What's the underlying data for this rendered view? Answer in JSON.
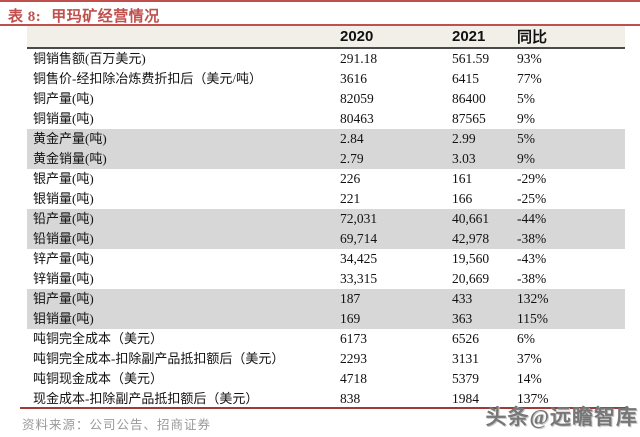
{
  "title": {
    "label": "表 8:",
    "text": "甲玛矿经营情况"
  },
  "table": {
    "header": {
      "year_2020": "2020",
      "year_2021": "2021",
      "yoy": "同比"
    },
    "rows": [
      {
        "label": "铜销售额(百万美元)",
        "v2020": "291.18",
        "v2021": "561.59",
        "yoy": "93%",
        "shaded": false
      },
      {
        "label": "铜售价-经扣除冶炼费折扣后（美元/吨）",
        "v2020": "3616",
        "v2021": "6415",
        "yoy": "77%",
        "shaded": false
      },
      {
        "label": "铜产量(吨)",
        "v2020": "82059",
        "v2021": "86400",
        "yoy": "5%",
        "shaded": false
      },
      {
        "label": "铜销量(吨)",
        "v2020": "80463",
        "v2021": "87565",
        "yoy": "9%",
        "shaded": false
      },
      {
        "label": "黄金产量(吨)",
        "v2020": "2.84",
        "v2021": "2.99",
        "yoy": "5%",
        "shaded": true
      },
      {
        "label": "黄金销量(吨)",
        "v2020": "2.79",
        "v2021": "3.03",
        "yoy": "9%",
        "shaded": true
      },
      {
        "label": "银产量(吨)",
        "v2020": "226",
        "v2021": "161",
        "yoy": "-29%",
        "shaded": false
      },
      {
        "label": "银销量(吨)",
        "v2020": "221",
        "v2021": "166",
        "yoy": "-25%",
        "shaded": false
      },
      {
        "label": "铅产量(吨)",
        "v2020": "72,031",
        "v2021": "40,661",
        "yoy": "-44%",
        "shaded": true
      },
      {
        "label": "铅销量(吨)",
        "v2020": "69,714",
        "v2021": "42,978",
        "yoy": "-38%",
        "shaded": true
      },
      {
        "label": "锌产量(吨)",
        "v2020": "34,425",
        "v2021": "19,560",
        "yoy": "-43%",
        "shaded": false
      },
      {
        "label": "锌销量(吨)",
        "v2020": "33,315",
        "v2021": "20,669",
        "yoy": "-38%",
        "shaded": false
      },
      {
        "label": "钼产量(吨)",
        "v2020": "187",
        "v2021": "433",
        "yoy": "132%",
        "shaded": true
      },
      {
        "label": "钼销量(吨)",
        "v2020": "169",
        "v2021": "363",
        "yoy": "115%",
        "shaded": true
      },
      {
        "label": "吨铜完全成本（美元）",
        "v2020": "6173",
        "v2021": "6526",
        "yoy": "6%",
        "shaded": false
      },
      {
        "label": "吨铜完全成本-扣除副产品抵扣额后（美元）",
        "v2020": "2293",
        "v2021": "3131",
        "yoy": "37%",
        "shaded": false
      },
      {
        "label": "吨铜现金成本（美元）",
        "v2020": "4718",
        "v2021": "5379",
        "yoy": "14%",
        "shaded": false
      },
      {
        "label": "现金成本-扣除副产品抵扣额后（美元）",
        "v2020": "838",
        "v2021": "1984",
        "yoy": "137%",
        "shaded": false
      }
    ]
  },
  "footer": {
    "source": "资料来源：公司公告、招商证券"
  },
  "watermark": "头条@远瞻智库",
  "colors": {
    "accent_title": "#c0504d",
    "bottom_rule": "#9e3b36",
    "row_shade": "#d7d7d7",
    "header_band": "#f2efe9",
    "source_text": "#9a9a9a"
  }
}
